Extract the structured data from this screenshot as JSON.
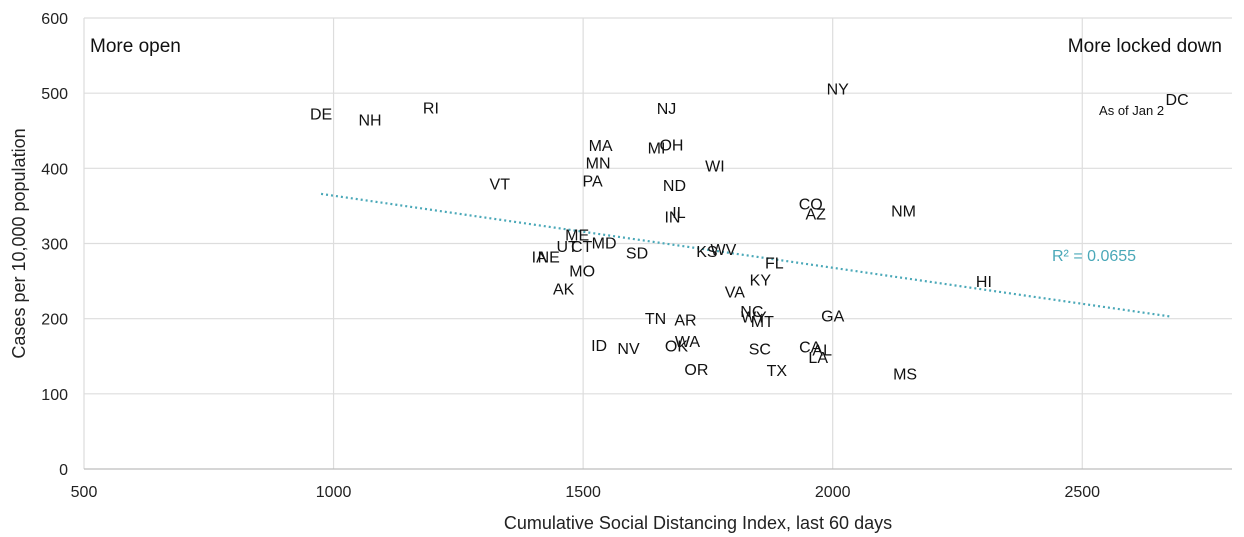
{
  "chart_data": {
    "type": "scatter",
    "xlabel": "Cumulative Social Distancing Index, last 60 days",
    "ylabel": "Cases per 10,000 population",
    "xlim": [
      500,
      2800
    ],
    "ylim": [
      0,
      600
    ],
    "x_ticks": [
      "500",
      "1000",
      "1500",
      "2000",
      "2500"
    ],
    "y_ticks": [
      "0",
      "100",
      "200",
      "300",
      "400",
      "500",
      "600"
    ],
    "grid": "vertical and horizontal",
    "annotations": {
      "left": "More open",
      "right": "More locked down",
      "dc_note": "As of Jan 2",
      "r_squared": "R² = 0.0655"
    },
    "trendline": {
      "x": [
        975,
        2675
      ],
      "y": [
        366,
        203
      ],
      "style": "dotted",
      "color": "#4aa8b8"
    },
    "points": [
      {
        "label": "DE",
        "x": 975,
        "y": 473
      },
      {
        "label": "NH",
        "x": 1073,
        "y": 465
      },
      {
        "label": "RI",
        "x": 1195,
        "y": 481
      },
      {
        "label": "VT",
        "x": 1333,
        "y": 380
      },
      {
        "label": "IA",
        "x": 1412,
        "y": 283
      },
      {
        "label": "NE",
        "x": 1431,
        "y": 283
      },
      {
        "label": "UT",
        "x": 1468,
        "y": 297
      },
      {
        "label": "CT",
        "x": 1497,
        "y": 297
      },
      {
        "label": "ME",
        "x": 1488,
        "y": 312
      },
      {
        "label": "MD",
        "x": 1542,
        "y": 301
      },
      {
        "label": "MO",
        "x": 1498,
        "y": 264
      },
      {
        "label": "AK",
        "x": 1461,
        "y": 240
      },
      {
        "label": "MA",
        "x": 1535,
        "y": 431
      },
      {
        "label": "MN",
        "x": 1530,
        "y": 408
      },
      {
        "label": "PA",
        "x": 1519,
        "y": 384
      },
      {
        "label": "SD",
        "x": 1608,
        "y": 288
      },
      {
        "label": "NJ",
        "x": 1667,
        "y": 480
      },
      {
        "label": "MI",
        "x": 1647,
        "y": 428
      },
      {
        "label": "OH",
        "x": 1677,
        "y": 432
      },
      {
        "label": "ND",
        "x": 1683,
        "y": 378
      },
      {
        "label": "IN",
        "x": 1679,
        "y": 336
      },
      {
        "label": "IL",
        "x": 1692,
        "y": 342
      },
      {
        "label": "WI",
        "x": 1764,
        "y": 404
      },
      {
        "label": "KS",
        "x": 1748,
        "y": 290
      },
      {
        "label": "WV",
        "x": 1781,
        "y": 293
      },
      {
        "label": "TN",
        "x": 1645,
        "y": 201
      },
      {
        "label": "AR",
        "x": 1705,
        "y": 199
      },
      {
        "label": "ID",
        "x": 1532,
        "y": 165
      },
      {
        "label": "NV",
        "x": 1591,
        "y": 161
      },
      {
        "label": "OK",
        "x": 1687,
        "y": 164
      },
      {
        "label": "WA",
        "x": 1709,
        "y": 170
      },
      {
        "label": "OR",
        "x": 1727,
        "y": 133
      },
      {
        "label": "VA",
        "x": 1804,
        "y": 236
      },
      {
        "label": "NC",
        "x": 1838,
        "y": 210
      },
      {
        "label": "WY",
        "x": 1842,
        "y": 203
      },
      {
        "label": "MT",
        "x": 1859,
        "y": 197
      },
      {
        "label": "KY",
        "x": 1855,
        "y": 252
      },
      {
        "label": "FL",
        "x": 1883,
        "y": 275
      },
      {
        "label": "SC",
        "x": 1854,
        "y": 160
      },
      {
        "label": "TX",
        "x": 1888,
        "y": 132
      },
      {
        "label": "CO",
        "x": 1956,
        "y": 353
      },
      {
        "label": "AZ",
        "x": 1966,
        "y": 340
      },
      {
        "label": "CA",
        "x": 1955,
        "y": 163
      },
      {
        "label": "AL",
        "x": 1979,
        "y": 159
      },
      {
        "label": "LA",
        "x": 1971,
        "y": 149
      },
      {
        "label": "GA",
        "x": 2000,
        "y": 204
      },
      {
        "label": "NY",
        "x": 2010,
        "y": 506
      },
      {
        "label": "NM",
        "x": 2142,
        "y": 344
      },
      {
        "label": "MS",
        "x": 2145,
        "y": 127
      },
      {
        "label": "HI",
        "x": 2303,
        "y": 250
      },
      {
        "label": "DC",
        "x": 2690,
        "y": 492
      }
    ]
  }
}
